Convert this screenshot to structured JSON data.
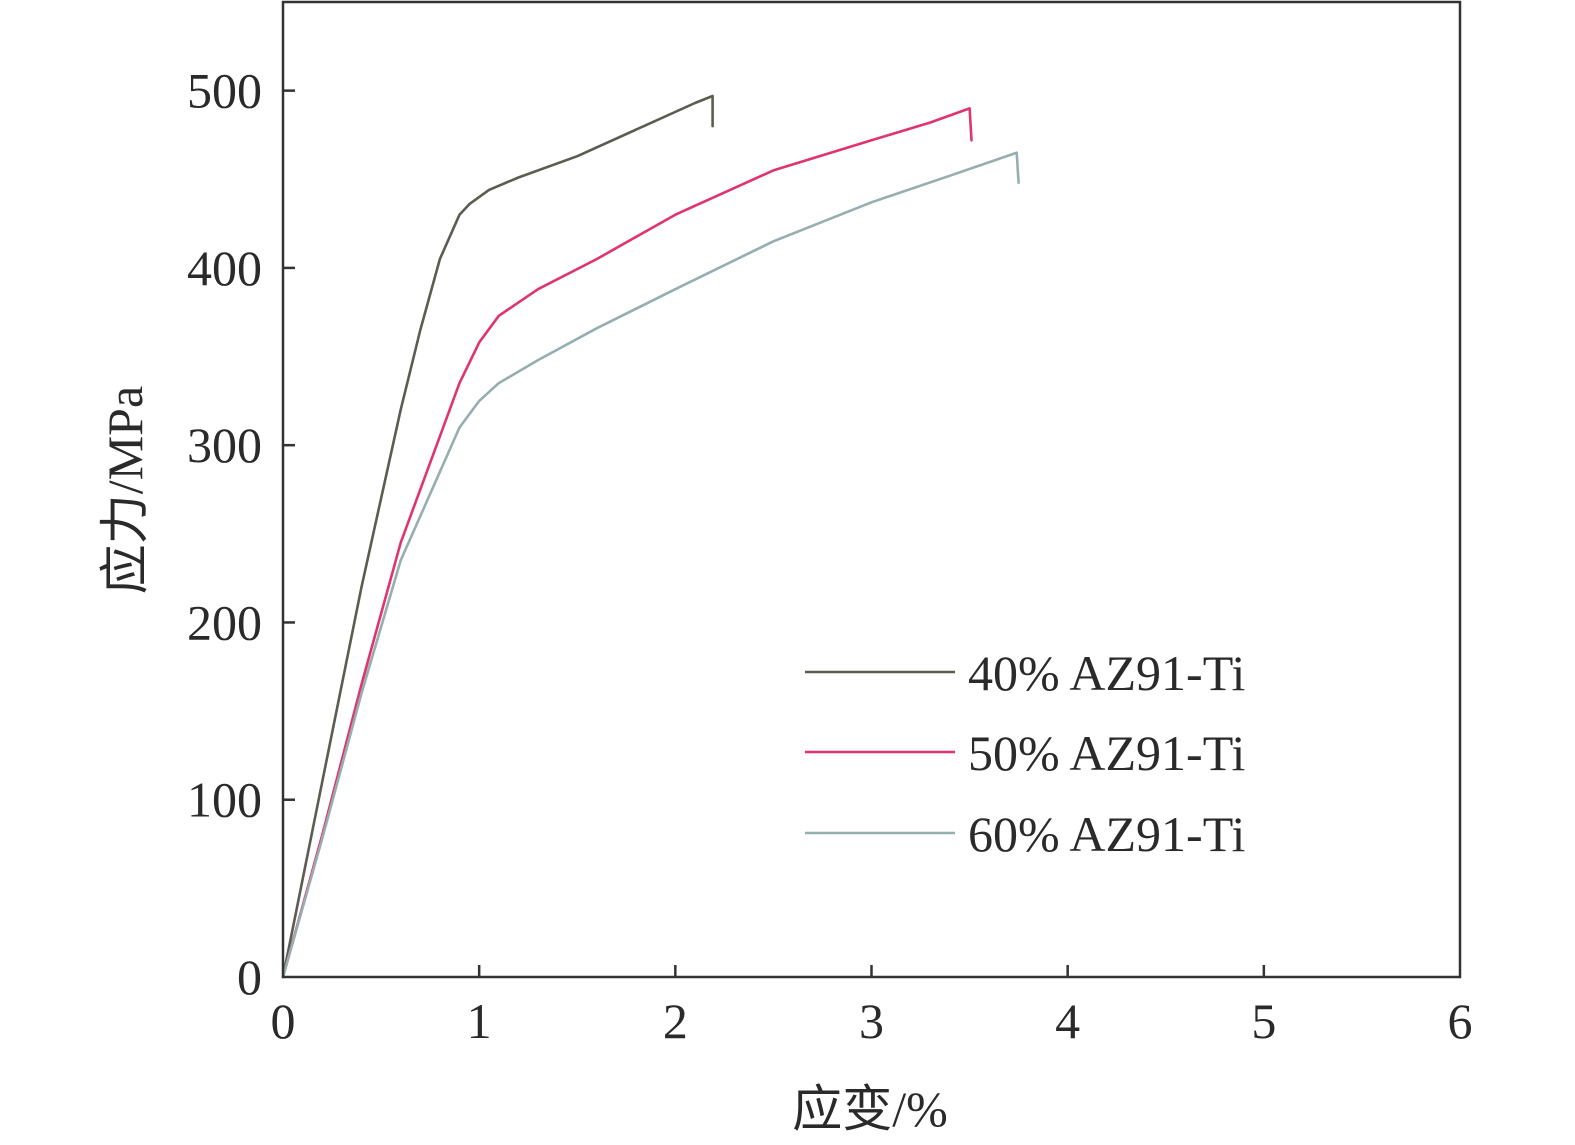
{
  "chart_data": {
    "type": "line",
    "title": "",
    "xlabel": "应变/%",
    "ylabel": "应力/MPa",
    "xlim": [
      0,
      6
    ],
    "ylim": [
      0,
      550
    ],
    "xticks": [
      0,
      1,
      2,
      3,
      4,
      5,
      6
    ],
    "yticks": [
      0,
      100,
      200,
      300,
      400,
      500
    ],
    "grid": false,
    "legend_position": "center-right",
    "series": [
      {
        "name": "40% AZ91-Ti",
        "color": "#5c5c52",
        "x": [
          0,
          0.2,
          0.4,
          0.6,
          0.7,
          0.8,
          0.9,
          0.95,
          1.05,
          1.2,
          1.5,
          1.8,
          2.1,
          2.19,
          2.19
        ],
        "y": [
          0,
          110,
          220,
          320,
          365,
          405,
          430,
          436,
          444,
          451,
          463,
          478,
          493,
          497,
          480
        ]
      },
      {
        "name": "50% AZ91-Ti",
        "color": "#e0346e",
        "x": [
          0,
          0.2,
          0.4,
          0.6,
          0.8,
          0.9,
          1.0,
          1.1,
          1.3,
          1.6,
          2.0,
          2.5,
          3.0,
          3.3,
          3.5,
          3.51
        ],
        "y": [
          0,
          80,
          165,
          245,
          305,
          335,
          358,
          373,
          388,
          405,
          430,
          455,
          472,
          482,
          490,
          472
        ]
      },
      {
        "name": "60% AZ91-Ti",
        "color": "#96aeae",
        "x": [
          0,
          0.2,
          0.4,
          0.6,
          0.8,
          0.9,
          1.0,
          1.1,
          1.3,
          1.6,
          2.0,
          2.5,
          3.0,
          3.4,
          3.74,
          3.75
        ],
        "y": [
          0,
          78,
          160,
          235,
          285,
          310,
          325,
          335,
          348,
          366,
          388,
          415,
          437,
          452,
          465,
          448
        ]
      }
    ]
  }
}
